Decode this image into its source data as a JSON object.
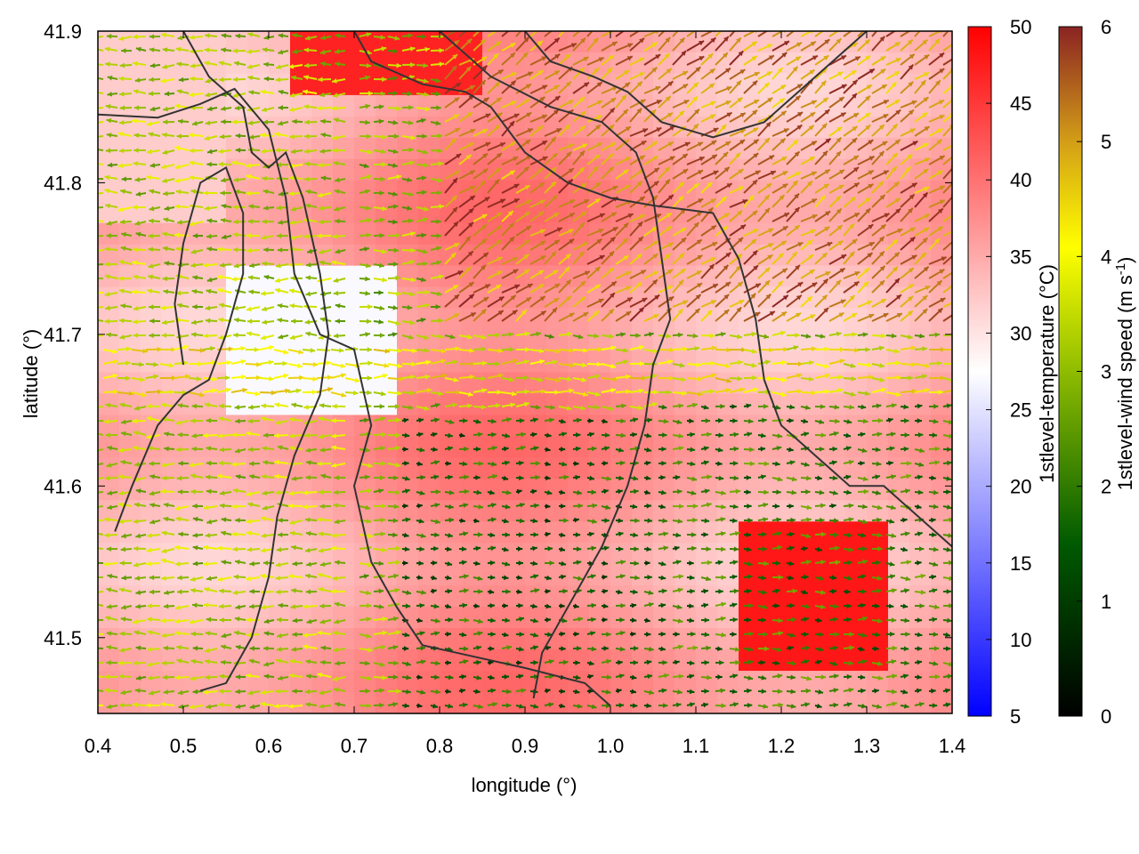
{
  "chart_data": {
    "type": "heatmap",
    "description_layers": [
      "temperature field (colormap)",
      "wind vectors (arrows colored by speed)",
      "terrain contour lines"
    ],
    "xlabel": "longitude (°)",
    "ylabel": "latitude (°)",
    "xlim": [
      0.4,
      1.4
    ],
    "ylim": [
      41.45,
      41.9
    ],
    "x_ticks": [
      "0.4",
      "0.5",
      "0.6",
      "0.7",
      "0.8",
      "0.9",
      "1.0",
      "1.1",
      "1.2",
      "1.3",
      "1.4"
    ],
    "y_ticks": [
      "41.5",
      "41.6",
      "41.7",
      "41.8",
      "41.9"
    ],
    "temperature_colorbar": {
      "label": "1stlevel-temperature (°C)",
      "range": [
        5,
        50
      ],
      "ticks": [
        "5",
        "10",
        "15",
        "20",
        "25",
        "30",
        "35",
        "40",
        "45",
        "50"
      ],
      "colors": [
        "#0000ff",
        "#ffffff",
        "#ff0000"
      ]
    },
    "wind_colorbar": {
      "label_main": "1stlevel-wind speed (m s",
      "label_sup": "-1",
      "label_end": ")",
      "range": [
        0,
        6
      ],
      "ticks": [
        "0",
        "1",
        "2",
        "3",
        "4",
        "5",
        "6"
      ],
      "colors": [
        "#000000",
        "#006400",
        "#8fbc00",
        "#ffff00",
        "#d4a017",
        "#8b2323"
      ]
    },
    "grid": false,
    "wind_regions": [
      {
        "x": [
          0.4,
          0.7
        ],
        "y": [
          41.45,
          41.9
        ],
        "speed": 3.2,
        "dir": "west"
      },
      {
        "x": [
          0.75,
          1.05
        ],
        "y": [
          41.45,
          41.65
        ],
        "speed": 1.6,
        "dir": "east"
      },
      {
        "x": [
          1.05,
          1.4
        ],
        "y": [
          41.45,
          41.68
        ],
        "speed": 2.0,
        "dir": "east"
      },
      {
        "x": [
          0.8,
          1.4
        ],
        "y": [
          41.7,
          41.9
        ],
        "speed": 5.2,
        "dir": "northeast"
      },
      {
        "x": [
          0.4,
          1.4
        ],
        "y": [
          41.66,
          41.69
        ],
        "speed": 4.0,
        "dir": "east"
      }
    ]
  }
}
